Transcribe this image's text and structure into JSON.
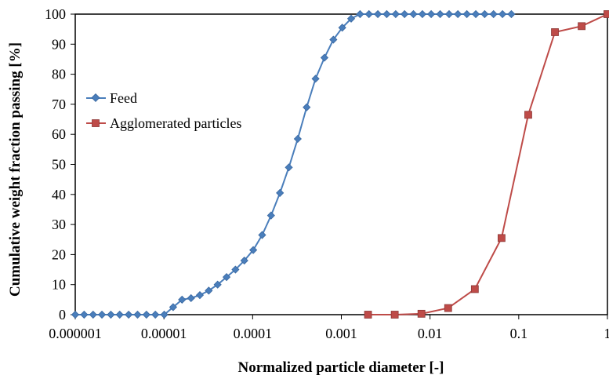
{
  "chart_data": {
    "type": "line",
    "title": "",
    "xlabel": "Normalized particle diameter [-]",
    "ylabel": "Cumulative weight fraction passing [%]",
    "x_scale": "log",
    "xlim": [
      1e-06,
      1
    ],
    "ylim": [
      0,
      100
    ],
    "x_ticks": [
      "0.000001",
      "0.00001",
      "0.0001",
      "0.001",
      "0.01",
      "0.1",
      "1"
    ],
    "y_ticks": [
      "0",
      "10",
      "20",
      "30",
      "40",
      "50",
      "60",
      "70",
      "80",
      "90",
      "100"
    ],
    "grid": false,
    "legend_position": "left, middle of plot area",
    "series": [
      {
        "name": "Feed",
        "color": "#4a7ebb",
        "marker": "diamond",
        "x": [
          1e-06,
          1.26e-06,
          1.59e-06,
          2e-06,
          2.52e-06,
          3.17e-06,
          4e-06,
          5.04e-06,
          6.35e-06,
          8e-06,
          1.008e-05,
          1.27e-05,
          1.6e-05,
          2.02e-05,
          2.54e-05,
          3.2e-05,
          4.03e-05,
          5.08e-05,
          6.4e-05,
          8.06e-05,
          0.0001016,
          0.000128,
          0.0001613,
          0.0002032,
          0.000256,
          0.0003225,
          0.0004064,
          0.000512,
          0.000645,
          0.000813,
          0.001024,
          0.00129,
          0.001626,
          0.002048,
          0.00258,
          0.00325,
          0.0041,
          0.00516,
          0.0065,
          0.0082,
          0.0103,
          0.013,
          0.0164,
          0.0206,
          0.026,
          0.0328,
          0.0413,
          0.052,
          0.0656,
          0.0826
        ],
        "y": [
          0,
          0,
          0,
          0,
          0,
          0,
          0,
          0,
          0,
          0,
          0,
          2.5,
          5,
          5.5,
          6.5,
          8,
          10,
          12.5,
          15,
          18,
          21.5,
          26.5,
          33,
          40.5,
          49,
          58.5,
          69,
          78.5,
          85.5,
          91.5,
          95.5,
          98.5,
          100,
          100,
          100,
          100,
          100,
          100,
          100,
          100,
          100,
          100,
          100,
          100,
          100,
          100,
          100,
          100,
          100,
          100
        ]
      },
      {
        "name": "Agglomerated particles",
        "color": "#be4b48",
        "marker": "square",
        "x": [
          0.002,
          0.004,
          0.008,
          0.016,
          0.032,
          0.064,
          0.128,
          0.256,
          0.512,
          1
        ],
        "y": [
          0,
          0,
          0.3,
          2.2,
          8.5,
          25.5,
          66.5,
          94,
          96,
          100
        ]
      }
    ]
  }
}
